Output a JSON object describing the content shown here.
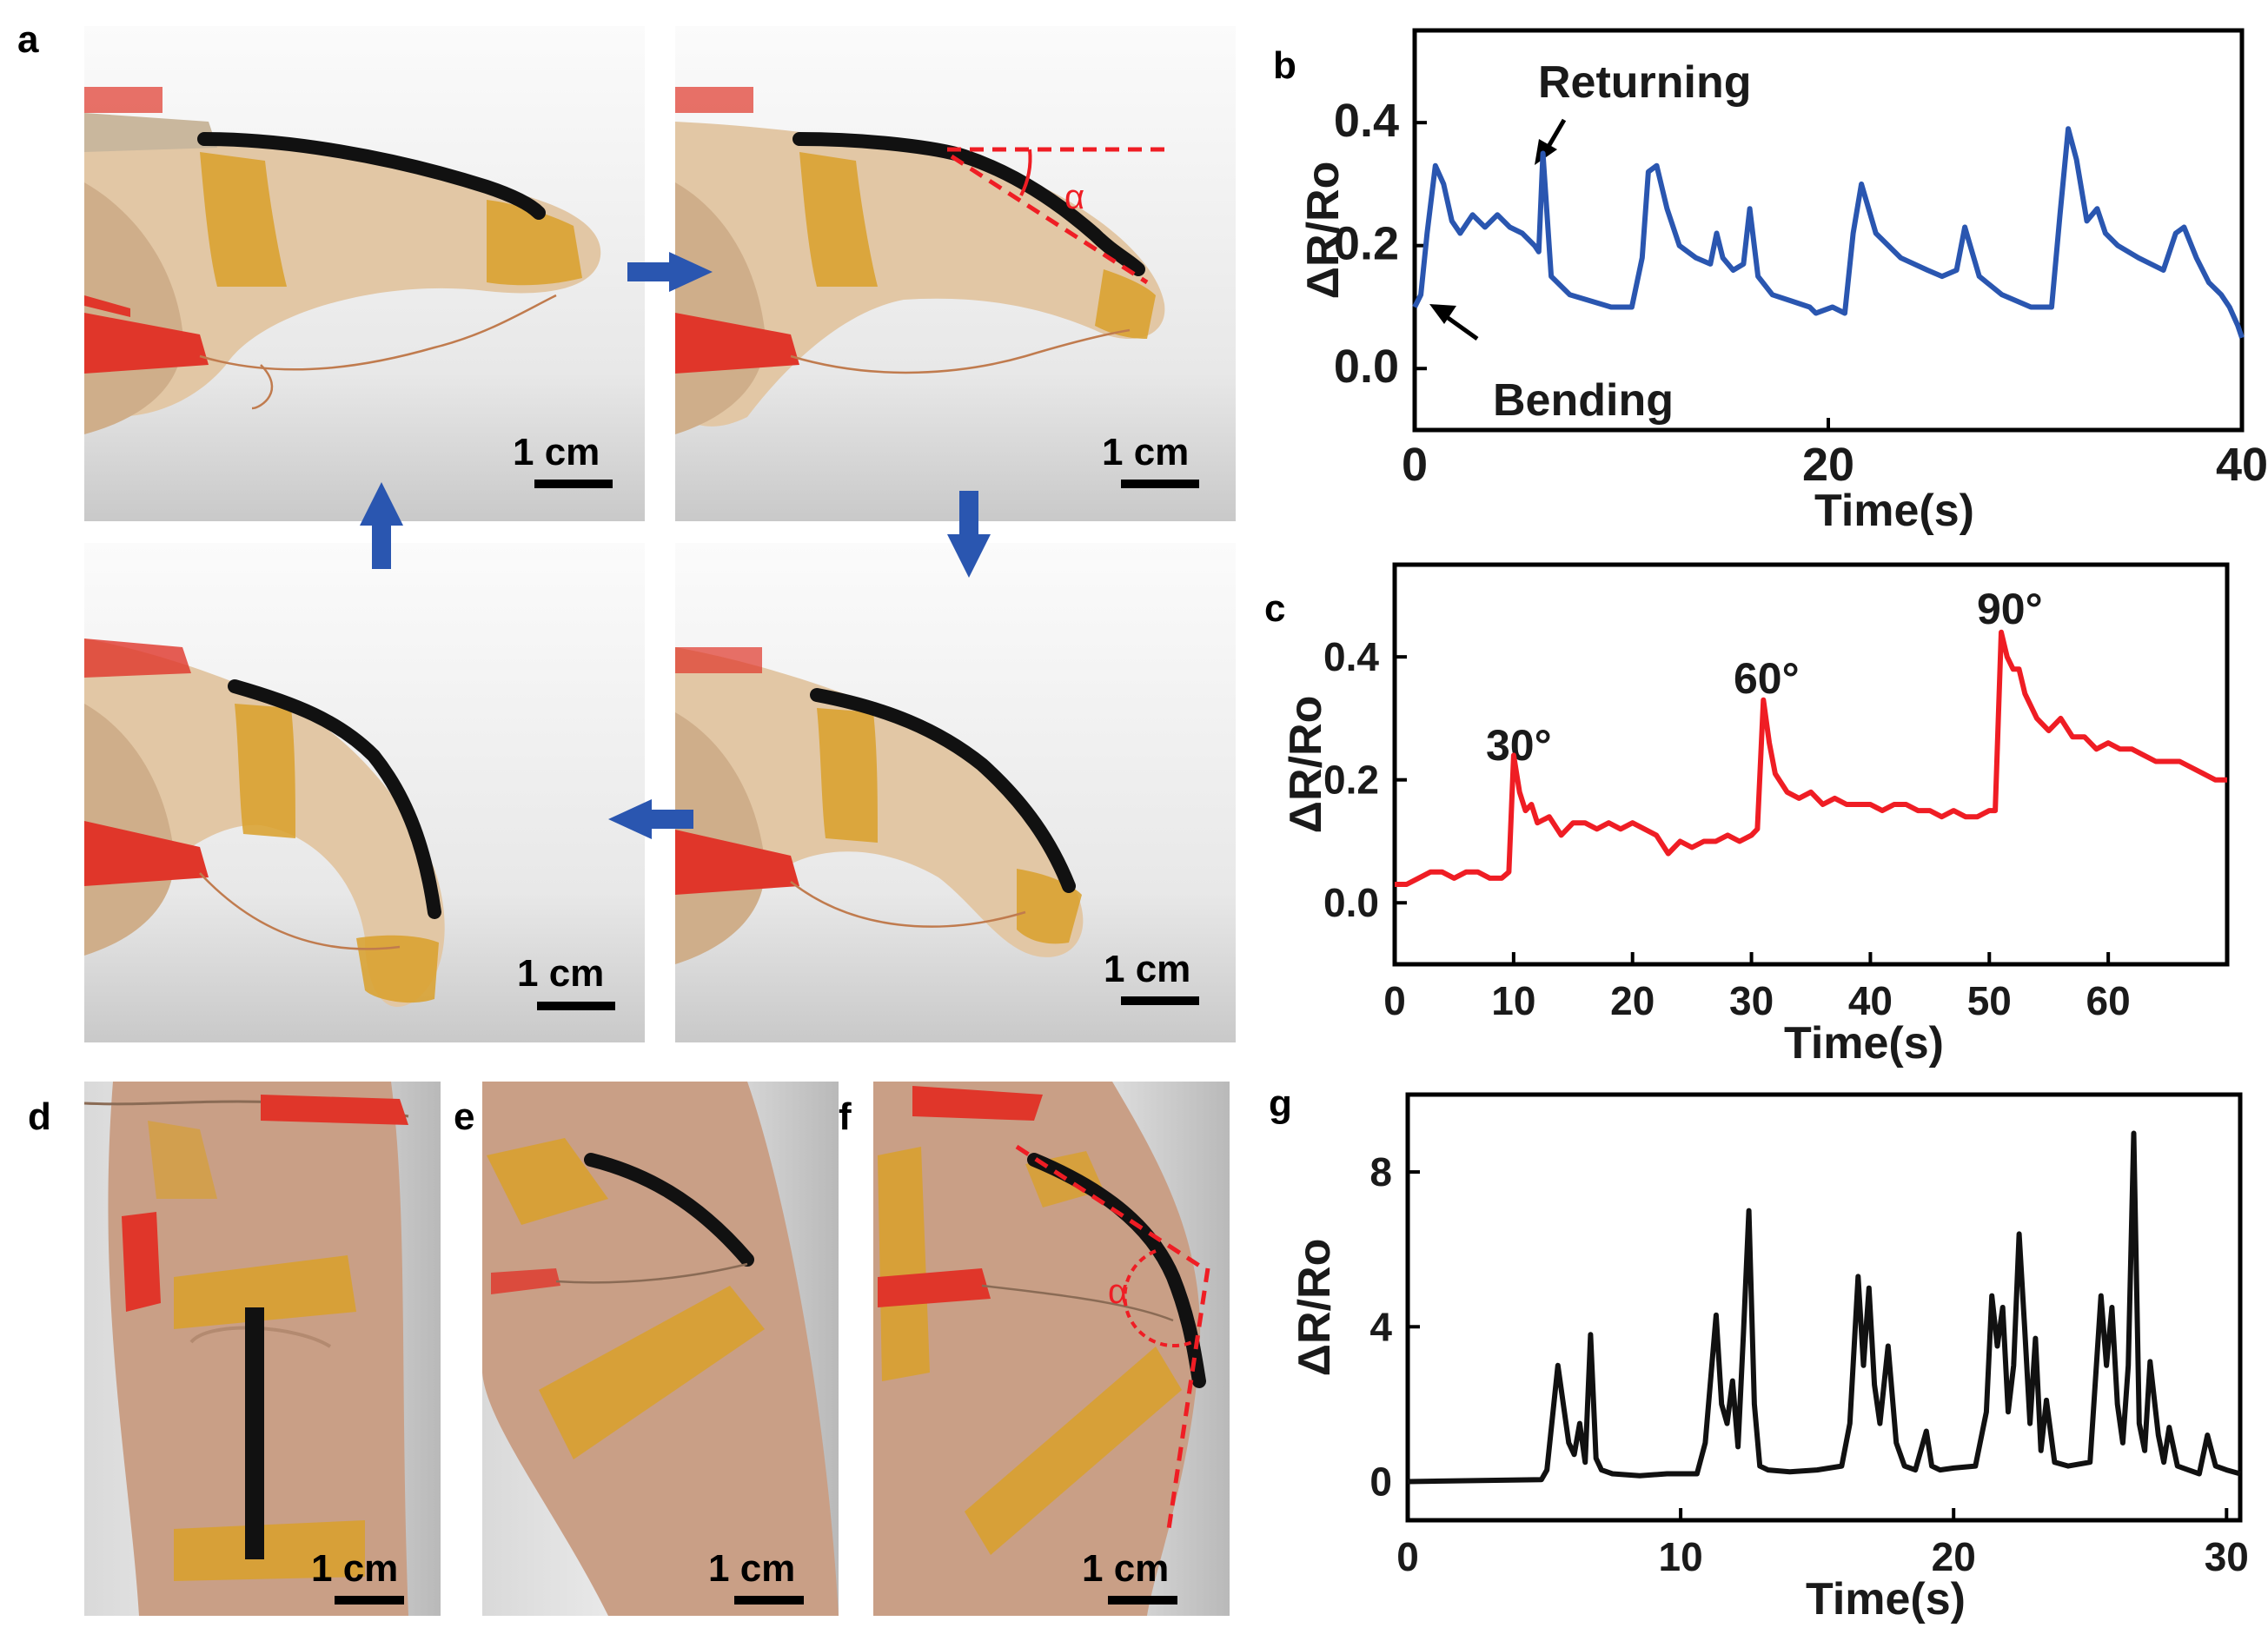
{
  "panel_letters": [
    "a",
    "b",
    "c",
    "d",
    "e",
    "f",
    "g"
  ],
  "scale_bar_label": "1 cm",
  "photo_a_angle_label": "α",
  "photo_f_angle_label": "α",
  "colors": {
    "blue": "#2a56b0",
    "red": "#ef1d24",
    "black": "#111111",
    "glove": "#e2c7a5",
    "tape": "#d9a02a",
    "skin": "#c99f86",
    "clip": "#e0362a"
  },
  "chart_data": [
    {
      "type": "line",
      "panel": "b",
      "xlabel": "Time(s)",
      "ylabel": "ΔR/Ro",
      "xlim": [
        0,
        40
      ],
      "ylim": [
        -0.1,
        0.55
      ],
      "xticks": [
        0,
        20,
        40
      ],
      "yticks": [
        0.0,
        0.2,
        0.4
      ],
      "color": "#2a56b0",
      "annotations": [
        "Returning",
        "Bending"
      ],
      "x": [
        0.0,
        0.3,
        0.6,
        1.0,
        1.4,
        1.8,
        2.2,
        2.8,
        3.4,
        4.0,
        4.6,
        5.2,
        5.8,
        6.0,
        6.2,
        6.6,
        7.5,
        8.5,
        9.5,
        10.5,
        11.0,
        11.3,
        11.7,
        12.2,
        12.8,
        13.6,
        14.3,
        14.6,
        14.9,
        15.4,
        15.9,
        16.2,
        16.6,
        17.3,
        18.2,
        19.1,
        19.4,
        20.2,
        20.8,
        21.2,
        21.6,
        22.3,
        23.5,
        24.8,
        25.5,
        26.2,
        26.6,
        27.3,
        28.4,
        29.8,
        30.8,
        31.2,
        31.6,
        32.0,
        32.5,
        33.0,
        33.4,
        34.0,
        35.0,
        36.2,
        36.8,
        37.2,
        37.8,
        38.4,
        39.0,
        39.4,
        39.8,
        40.0
      ],
      "y": [
        0.1,
        0.12,
        0.22,
        0.33,
        0.3,
        0.24,
        0.22,
        0.25,
        0.23,
        0.25,
        0.23,
        0.22,
        0.2,
        0.19,
        0.35,
        0.15,
        0.12,
        0.11,
        0.1,
        0.1,
        0.18,
        0.32,
        0.33,
        0.26,
        0.2,
        0.18,
        0.17,
        0.22,
        0.18,
        0.16,
        0.17,
        0.26,
        0.15,
        0.12,
        0.11,
        0.1,
        0.09,
        0.1,
        0.09,
        0.22,
        0.3,
        0.22,
        0.18,
        0.16,
        0.15,
        0.16,
        0.23,
        0.15,
        0.12,
        0.1,
        0.1,
        0.25,
        0.39,
        0.34,
        0.24,
        0.26,
        0.22,
        0.2,
        0.18,
        0.16,
        0.22,
        0.23,
        0.18,
        0.14,
        0.12,
        0.1,
        0.07,
        0.05
      ]
    },
    {
      "type": "line",
      "panel": "c",
      "xlabel": "Time(s)",
      "ylabel": "ΔR/Ro",
      "xlim": [
        0,
        70
      ],
      "ylim": [
        -0.1,
        0.55
      ],
      "xticks": [
        0,
        10,
        20,
        30,
        40,
        50,
        60
      ],
      "yticks": [
        0.0,
        0.2,
        0.4
      ],
      "color": "#ef1d24",
      "annotations": [
        "30°",
        "60°",
        "90°"
      ],
      "x": [
        0,
        1,
        2,
        3,
        4,
        5,
        6,
        7,
        8,
        9,
        9.6,
        10,
        10.5,
        11,
        11.5,
        12,
        13,
        14,
        15,
        16,
        17,
        18,
        19,
        20,
        21,
        22,
        23,
        24,
        25,
        26,
        27,
        28,
        29,
        30,
        30.5,
        31,
        31.5,
        32,
        33,
        34,
        35,
        36,
        37,
        38,
        39,
        40,
        41,
        42,
        43,
        44,
        45,
        46,
        47,
        48,
        49,
        50,
        50.5,
        51,
        51.5,
        52,
        52.5,
        53,
        54,
        55,
        56,
        57,
        58,
        59,
        60,
        61,
        62,
        63,
        64,
        65,
        66,
        67,
        68,
        69,
        70
      ],
      "y": [
        0.03,
        0.03,
        0.04,
        0.05,
        0.05,
        0.04,
        0.05,
        0.05,
        0.04,
        0.04,
        0.05,
        0.24,
        0.18,
        0.15,
        0.16,
        0.13,
        0.14,
        0.11,
        0.13,
        0.13,
        0.12,
        0.13,
        0.12,
        0.13,
        0.12,
        0.11,
        0.08,
        0.1,
        0.09,
        0.1,
        0.1,
        0.11,
        0.1,
        0.11,
        0.12,
        0.33,
        0.26,
        0.21,
        0.18,
        0.17,
        0.18,
        0.16,
        0.17,
        0.16,
        0.16,
        0.16,
        0.15,
        0.16,
        0.16,
        0.15,
        0.15,
        0.14,
        0.15,
        0.14,
        0.14,
        0.15,
        0.15,
        0.44,
        0.4,
        0.38,
        0.38,
        0.34,
        0.3,
        0.28,
        0.3,
        0.27,
        0.27,
        0.25,
        0.26,
        0.25,
        0.25,
        0.24,
        0.23,
        0.23,
        0.23,
        0.22,
        0.21,
        0.2,
        0.2
      ]
    },
    {
      "type": "line",
      "panel": "g",
      "xlabel": "Time(s)",
      "ylabel": "ΔR/Ro",
      "xlim": [
        0,
        30.5
      ],
      "ylim": [
        -1,
        10
      ],
      "xticks": [
        0,
        10,
        20,
        30
      ],
      "yticks": [
        0,
        4,
        8
      ],
      "color": "#111111",
      "x": [
        0,
        4.9,
        5.1,
        5.5,
        5.9,
        6.1,
        6.3,
        6.5,
        6.7,
        6.9,
        7.1,
        7.5,
        8.5,
        9.5,
        10.6,
        10.9,
        11.3,
        11.5,
        11.7,
        11.9,
        12.1,
        12.3,
        12.5,
        12.7,
        12.9,
        13.2,
        14,
        15,
        15.9,
        16.2,
        16.5,
        16.7,
        16.9,
        17.1,
        17.3,
        17.6,
        17.9,
        18.2,
        18.6,
        19.0,
        19.2,
        19.5,
        20,
        20.8,
        21.2,
        21.4,
        21.6,
        21.8,
        22.0,
        22.2,
        22.4,
        22.6,
        22.8,
        23.0,
        23.2,
        23.4,
        23.7,
        24.2,
        25.0,
        25.4,
        25.6,
        25.8,
        26.0,
        26.2,
        26.4,
        26.6,
        26.8,
        27.0,
        27.2,
        27.5,
        27.7,
        27.9,
        28.2,
        28.6,
        29.0,
        29.3,
        29.6,
        30.0,
        30.5
      ],
      "y": [
        0,
        0.05,
        0.3,
        3.0,
        1.0,
        0.7,
        1.5,
        0.5,
        3.8,
        0.6,
        0.3,
        0.2,
        0.15,
        0.2,
        0.2,
        1.0,
        4.3,
        2.0,
        1.5,
        2.6,
        0.9,
        3.8,
        7.0,
        2.0,
        0.4,
        0.3,
        0.25,
        0.3,
        0.4,
        1.5,
        5.3,
        3.0,
        5.0,
        2.5,
        1.5,
        3.5,
        1.0,
        0.4,
        0.3,
        1.3,
        0.4,
        0.3,
        0.35,
        0.4,
        1.8,
        4.8,
        3.5,
        4.5,
        1.8,
        3.0,
        6.4,
        4.0,
        1.5,
        3.7,
        0.8,
        2.1,
        0.5,
        0.4,
        0.5,
        4.8,
        3.0,
        4.5,
        2.0,
        1.0,
        3.0,
        9.0,
        1.5,
        0.8,
        3.1,
        1.2,
        0.5,
        1.4,
        0.4,
        0.3,
        0.2,
        1.2,
        0.4,
        0.3,
        0.2
      ]
    }
  ]
}
